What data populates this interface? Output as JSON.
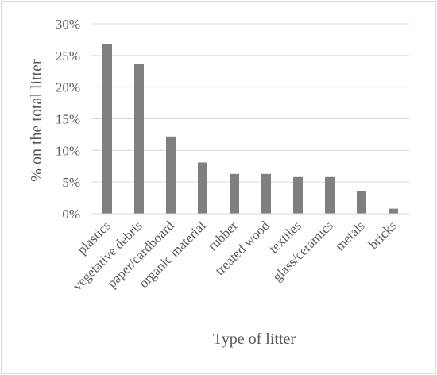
{
  "chart_data": {
    "type": "bar",
    "title": "",
    "xlabel": "Type of litter",
    "ylabel": "% on the total litter",
    "categories": [
      "plastics",
      "vegetative debris",
      "paper/cardboard",
      "organic material",
      "rubber",
      "treated wood",
      "textiles",
      "glass/ceramics",
      "metals",
      "bricks"
    ],
    "values": [
      26.8,
      23.6,
      12.2,
      8.1,
      6.3,
      6.3,
      5.8,
      5.8,
      3.6,
      0.8
    ],
    "ylim": [
      0,
      30
    ],
    "yticks": [
      "0%",
      "5%",
      "10%",
      "15%",
      "20%",
      "25%",
      "30%"
    ],
    "grid": true,
    "legend": "none",
    "bar_color": "#7f7f7f",
    "grid_color": "#d9d9d9"
  }
}
